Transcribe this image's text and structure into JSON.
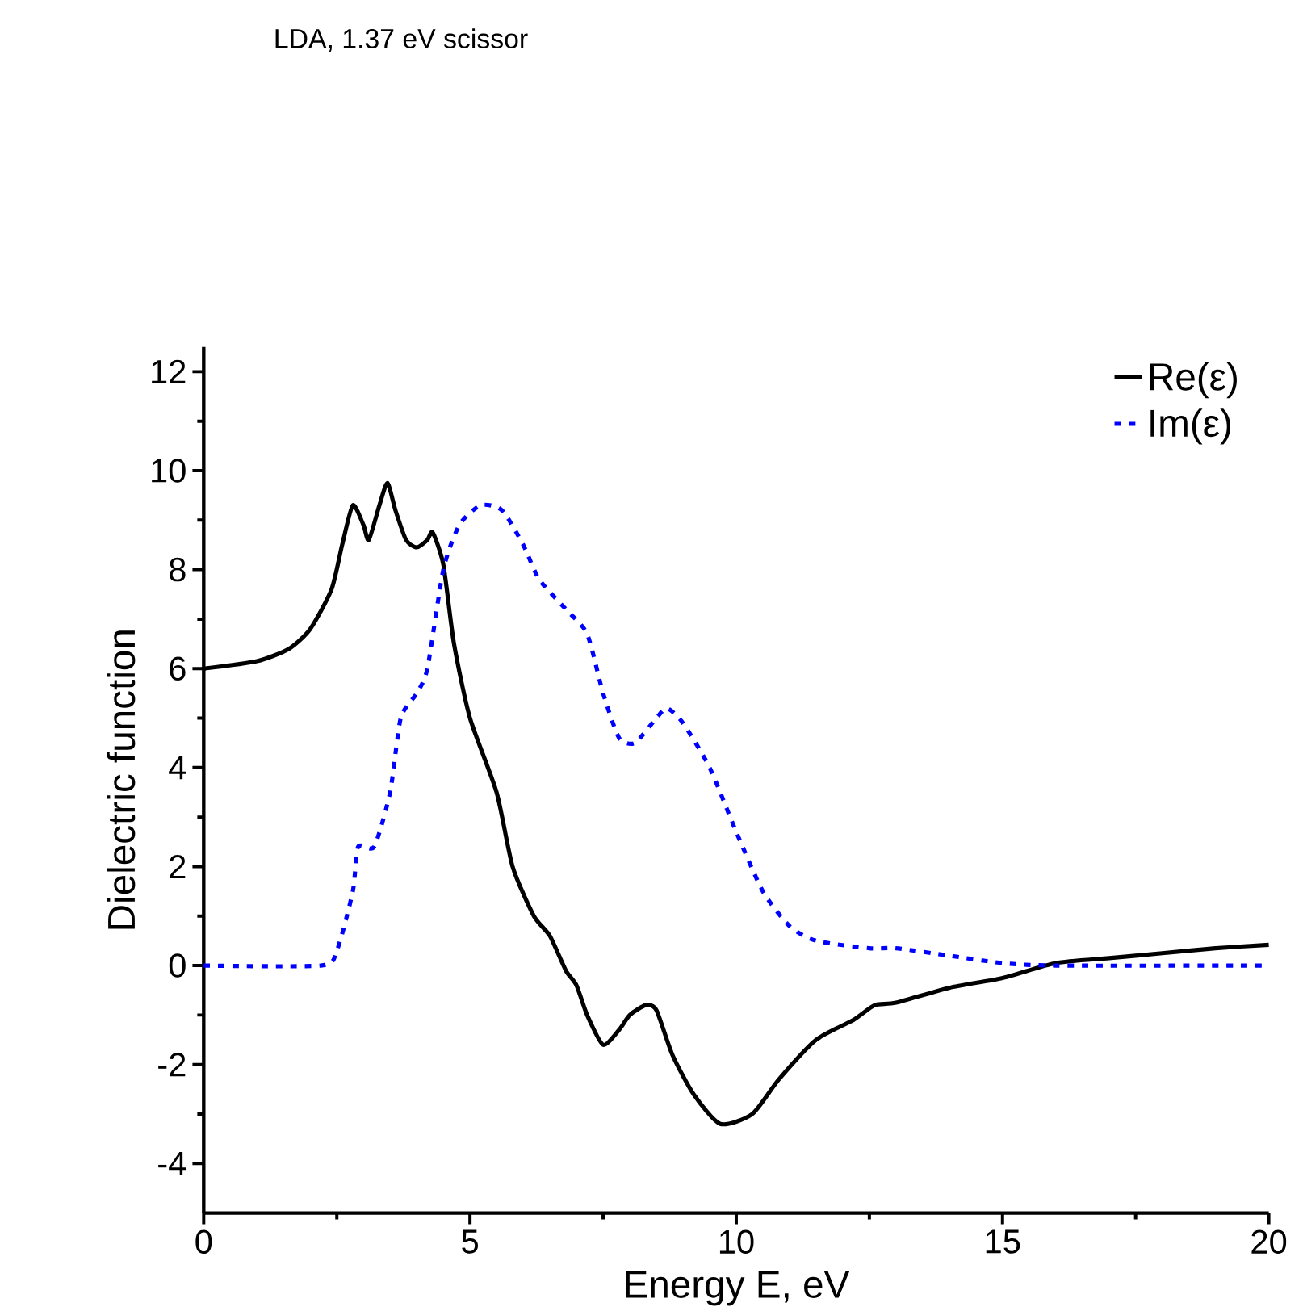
{
  "chart_data": {
    "type": "line",
    "title": "LDA, 1.37 eV scissor",
    "xlabel": "Energy E, eV",
    "ylabel": "Dielectric function",
    "xlim": [
      0,
      20
    ],
    "ylim": [
      -5,
      12.5
    ],
    "xticks": [
      0,
      5,
      10,
      15,
      20
    ],
    "yticks": [
      -4,
      -2,
      0,
      2,
      4,
      6,
      8,
      10,
      12
    ],
    "legend": "top right",
    "grid": false,
    "series": [
      {
        "name": "Re(ε)",
        "color": "#000000",
        "line_style": "solid",
        "x": [
          0,
          1,
          1.6,
          2,
          2.4,
          2.6,
          2.8,
          3.0,
          3.1,
          3.3,
          3.45,
          3.6,
          3.8,
          4.0,
          4.2,
          4.3,
          4.5,
          4.7,
          5.0,
          5.5,
          5.8,
          6.2,
          6.5,
          6.8,
          7.0,
          7.2,
          7.5,
          7.8,
          8.0,
          8.3,
          8.5,
          8.8,
          9.2,
          9.7,
          10.3,
          10.8,
          11.5,
          12.2,
          12.6,
          13.0,
          14.0,
          15.0,
          16.0,
          17.0,
          18.0,
          19.0,
          20.0
        ],
        "values": [
          6.0,
          6.15,
          6.4,
          6.8,
          7.6,
          8.5,
          9.3,
          8.9,
          8.6,
          9.3,
          9.75,
          9.2,
          8.6,
          8.45,
          8.6,
          8.75,
          8.1,
          6.5,
          5.0,
          3.5,
          2.0,
          1.0,
          0.6,
          -0.1,
          -0.4,
          -1.0,
          -1.6,
          -1.3,
          -1.0,
          -0.8,
          -0.9,
          -1.8,
          -2.6,
          -3.2,
          -3.0,
          -2.3,
          -1.5,
          -1.1,
          -0.8,
          -0.75,
          -0.45,
          -0.25,
          0.05,
          0.15,
          0.25,
          0.35,
          0.42
        ]
      },
      {
        "name": "Im(ε)",
        "color": "#0000ff",
        "line_style": "dotted",
        "x": [
          0,
          2.2,
          2.5,
          2.8,
          2.9,
          3.2,
          3.5,
          3.7,
          4.0,
          4.2,
          4.5,
          4.8,
          5.2,
          5.6,
          6.0,
          6.3,
          6.8,
          7.2,
          7.5,
          7.8,
          8.1,
          8.5,
          8.7,
          9.0,
          9.5,
          10.0,
          10.5,
          11.0,
          11.5,
          12.5,
          13.0,
          14.0,
          15.0,
          16.0,
          20.0
        ],
        "values": [
          0,
          0,
          0.3,
          1.5,
          2.4,
          2.4,
          3.5,
          5.0,
          5.5,
          6.0,
          8.0,
          8.9,
          9.3,
          9.2,
          8.5,
          7.8,
          7.2,
          6.7,
          5.5,
          4.6,
          4.5,
          5.0,
          5.2,
          4.9,
          4.0,
          2.7,
          1.5,
          0.8,
          0.5,
          0.35,
          0.35,
          0.2,
          0.05,
          0,
          0
        ]
      }
    ]
  }
}
